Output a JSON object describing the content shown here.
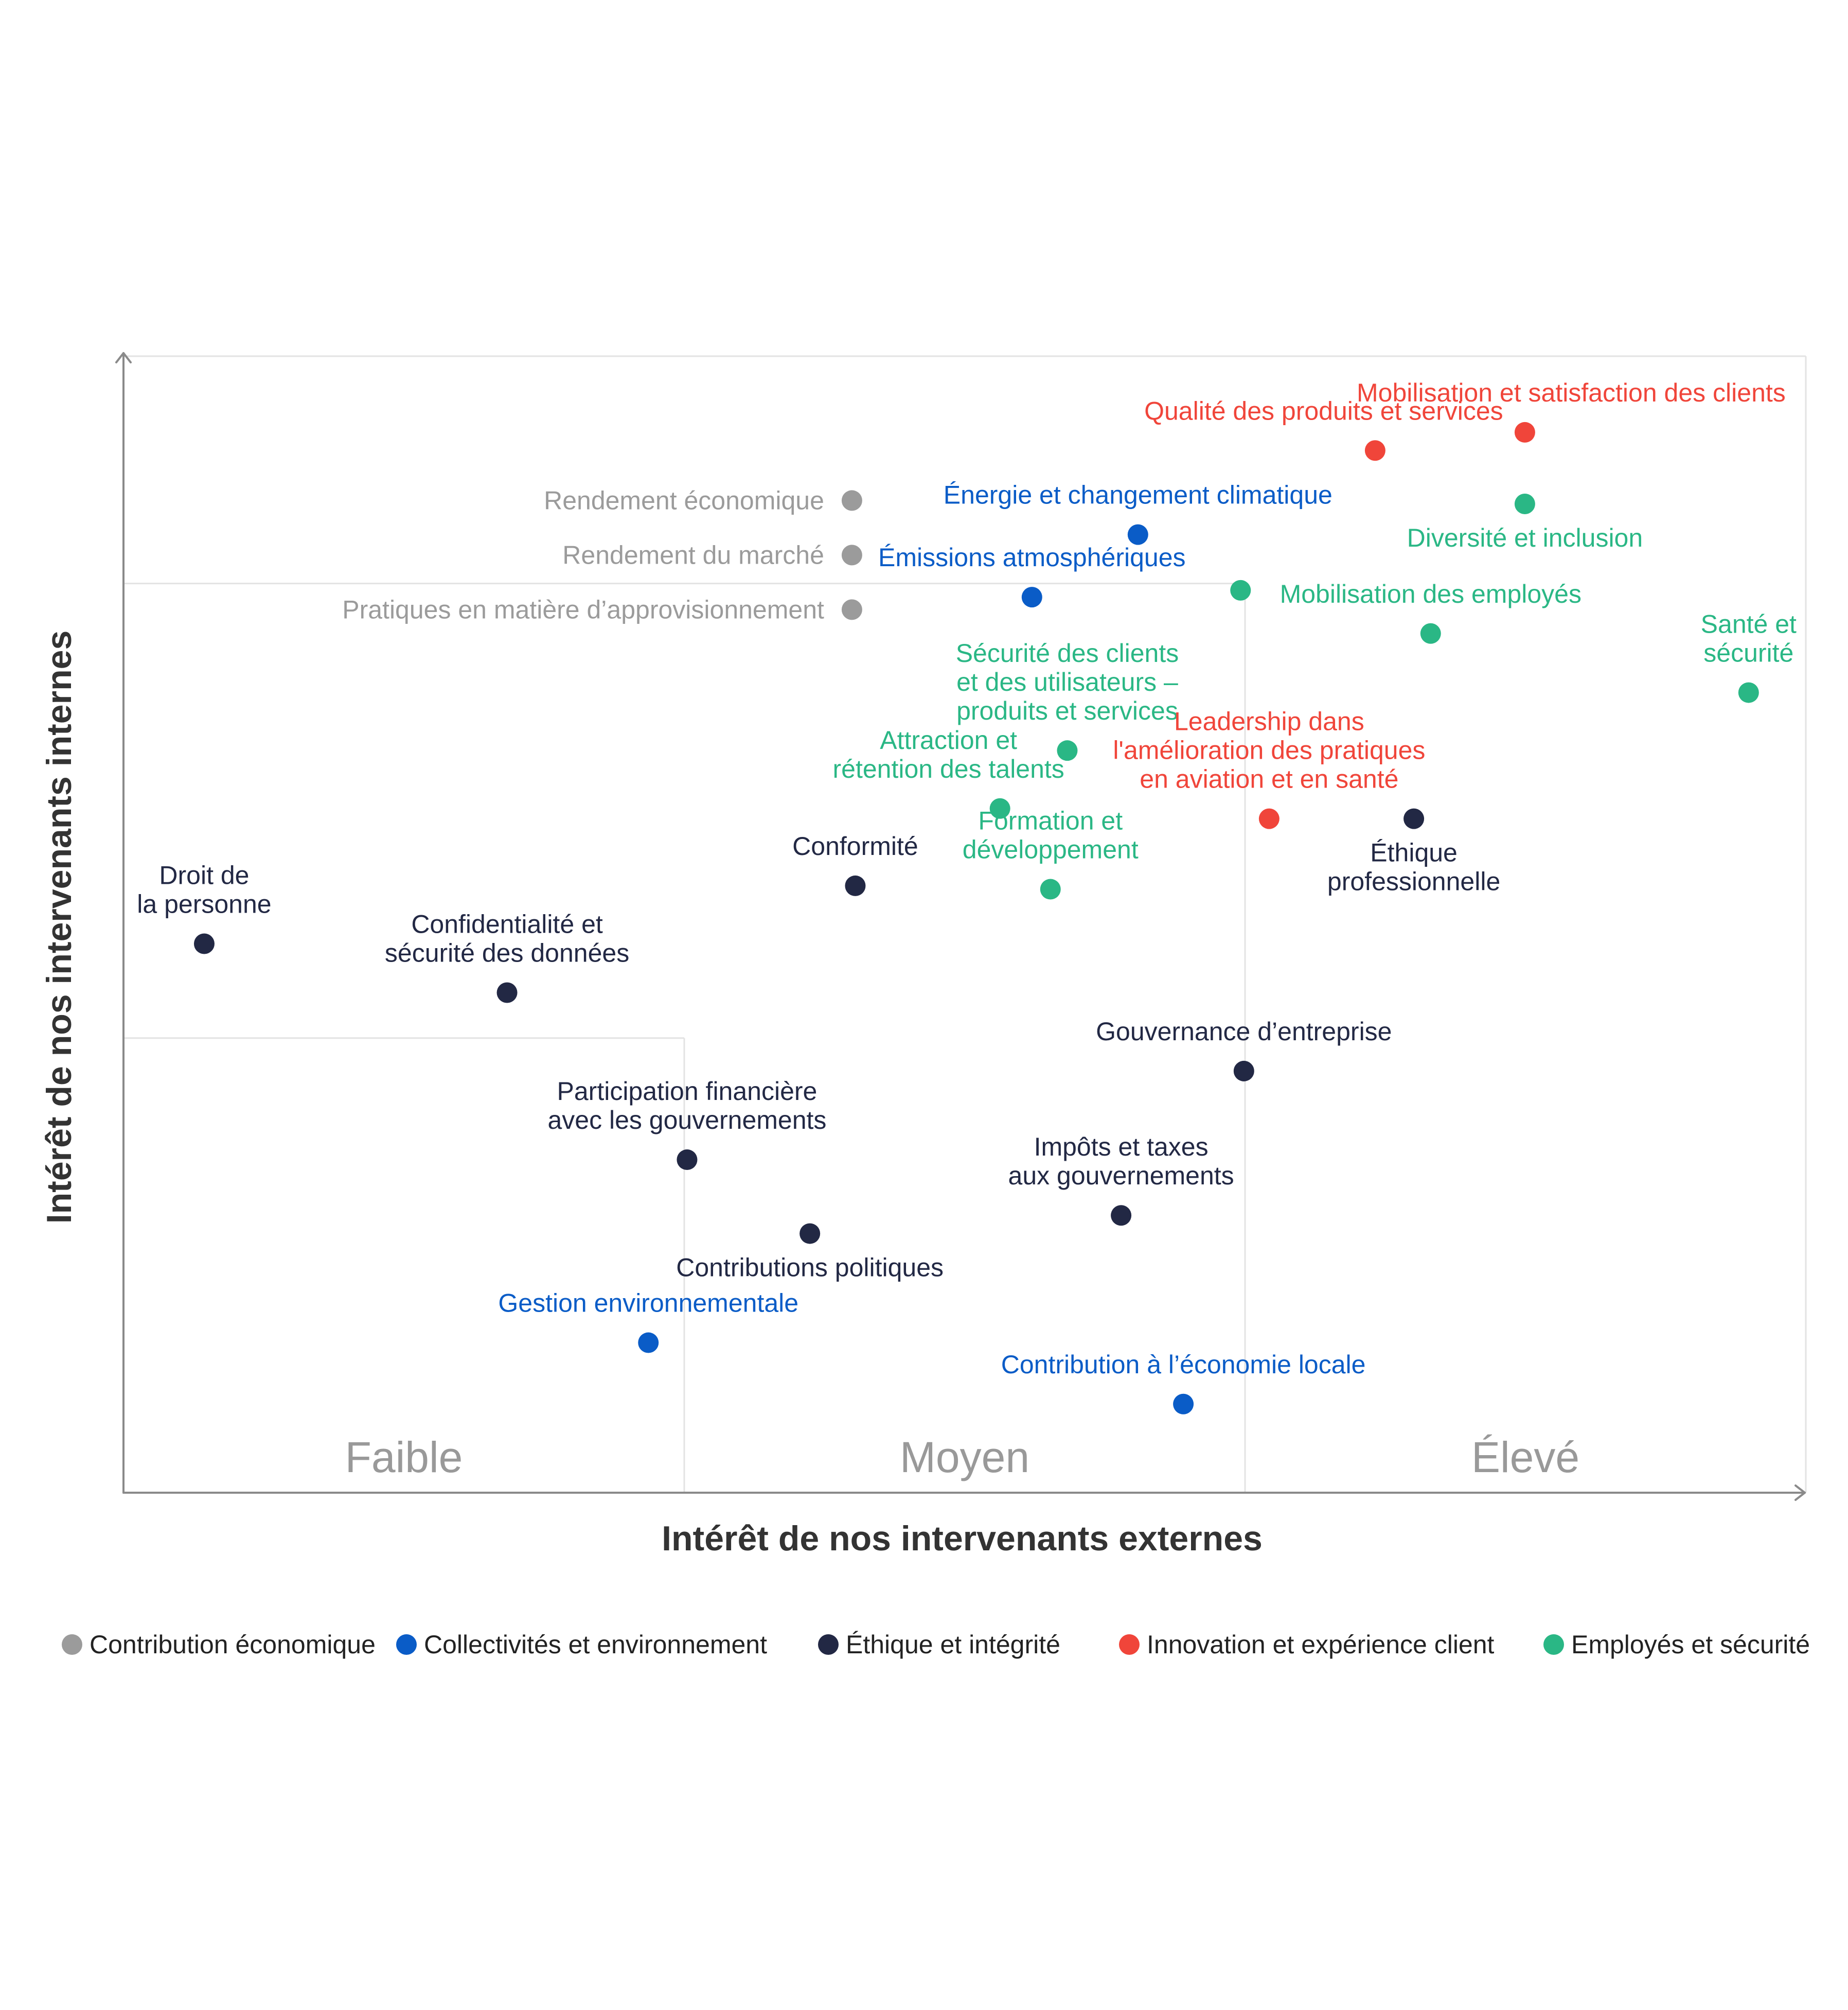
{
  "colors": {
    "gray": "#9b9b9b",
    "blue": "#0a5cc7",
    "navy": "#222844",
    "red": "#f0453a",
    "green": "#2ab785",
    "axis": "#8a8a8a",
    "grid": "#e3e3e3",
    "zone_text": "#999999",
    "axis_text": "#333333"
  },
  "chart_data": {
    "type": "scatter",
    "xlabel": "Intérêt de nos intervenants externes",
    "ylabel": "Intérêt de nos intervenants internes",
    "xlim": [
      0,
      100
    ],
    "ylim": [
      0,
      100
    ],
    "grid": false,
    "zones": [
      "Faible",
      "Moyen",
      "Élevé"
    ],
    "legend_position": "bottom",
    "legend": [
      {
        "name": "Contribution économique",
        "color": "#9b9b9b"
      },
      {
        "name": "Collectivités et environnement",
        "color": "#0a5cc7"
      },
      {
        "name": "Éthique et intégrité",
        "color": "#222844"
      },
      {
        "name": "Innovation et expérience client",
        "color": "#f0453a"
      },
      {
        "name": "Employés et sécurité",
        "color": "#2ab785"
      }
    ],
    "points": [
      {
        "label": [
          "Mobilisation et satisfaction des clients"
        ],
        "x": 83.3,
        "y": 93.3,
        "color": "#f0453a",
        "label_pos": "above-right"
      },
      {
        "label": [
          "Qualité des produits et services"
        ],
        "x": 74.4,
        "y": 91.7,
        "color": "#f0453a",
        "label_pos": "above-left"
      },
      {
        "label": [
          "Rendement économique"
        ],
        "x": 43.3,
        "y": 87.3,
        "color": "#9b9b9b",
        "label_pos": "left"
      },
      {
        "label": [
          "Diversité et inclusion"
        ],
        "x": 83.3,
        "y": 87.0,
        "color": "#2ab785",
        "label_pos": "below"
      },
      {
        "label": [
          "Énergie et changement climatique"
        ],
        "x": 60.3,
        "y": 84.3,
        "color": "#0a5cc7",
        "label_pos": "above"
      },
      {
        "label": [
          "Rendement du marché"
        ],
        "x": 43.3,
        "y": 82.5,
        "color": "#9b9b9b",
        "label_pos": "left"
      },
      {
        "label": [
          "Émissions atmosphériques"
        ],
        "x": 54.0,
        "y": 78.8,
        "color": "#0a5cc7",
        "label_pos": "above"
      },
      {
        "label": [],
        "x": 66.4,
        "y": 79.4,
        "color": "#2ab785",
        "label_pos": "none"
      },
      {
        "label": [
          "Pratiques en matière d’approvisionnement"
        ],
        "x": 43.3,
        "y": 77.7,
        "color": "#9b9b9b",
        "label_pos": "left"
      },
      {
        "label": [
          "Mobilisation des employés"
        ],
        "x": 77.7,
        "y": 75.6,
        "color": "#2ab785",
        "label_pos": "above"
      },
      {
        "label": [
          "Santé et",
          "sécurité"
        ],
        "x": 96.6,
        "y": 70.4,
        "color": "#2ab785",
        "label_pos": "above"
      },
      {
        "label": [
          "Sécurité des clients",
          "et des utilisateurs –",
          "produits et services"
        ],
        "x": 56.1,
        "y": 65.3,
        "color": "#2ab785",
        "label_pos": "above"
      },
      {
        "label": [
          "Attraction et",
          "rétention des talents"
        ],
        "x": 52.1,
        "y": 60.2,
        "color": "#2ab785",
        "label_pos": "above-left"
      },
      {
        "label": [
          "Leadership dans",
          "l'amélioration des pratiques",
          "en aviation et en santé"
        ],
        "x": 68.1,
        "y": 59.3,
        "color": "#f0453a",
        "label_pos": "above"
      },
      {
        "label": [
          "Éthique",
          "professionnelle"
        ],
        "x": 76.7,
        "y": 59.3,
        "color": "#222844",
        "label_pos": "below"
      },
      {
        "label": [
          "Conformité"
        ],
        "x": 43.5,
        "y": 53.4,
        "color": "#222844",
        "label_pos": "above"
      },
      {
        "label": [
          "Formation et",
          "développement"
        ],
        "x": 55.1,
        "y": 53.1,
        "color": "#2ab785",
        "label_pos": "above"
      },
      {
        "label": [
          "Droit de",
          "la personne"
        ],
        "x": 4.8,
        "y": 48.3,
        "color": "#222844",
        "label_pos": "above"
      },
      {
        "label": [
          "Confidentialité et",
          "sécurité des données"
        ],
        "x": 22.8,
        "y": 44.0,
        "color": "#222844",
        "label_pos": "above"
      },
      {
        "label": [
          "Gouvernance d’entreprise"
        ],
        "x": 66.6,
        "y": 37.1,
        "color": "#222844",
        "label_pos": "above"
      },
      {
        "label": [
          "Participation financière",
          "avec les gouvernements"
        ],
        "x": 33.5,
        "y": 29.3,
        "color": "#222844",
        "label_pos": "above"
      },
      {
        "label": [
          "Impôts et taxes",
          "aux gouvernements"
        ],
        "x": 59.3,
        "y": 24.4,
        "color": "#222844",
        "label_pos": "above"
      },
      {
        "label": [
          "Contributions politiques"
        ],
        "x": 40.8,
        "y": 22.8,
        "color": "#222844",
        "label_pos": "below"
      },
      {
        "label": [
          "Gestion environnementale"
        ],
        "x": 31.2,
        "y": 13.2,
        "color": "#0a5cc7",
        "label_pos": "above"
      },
      {
        "label": [
          "Contribution à l’économie locale"
        ],
        "x": 63.0,
        "y": 7.8,
        "color": "#0a5cc7",
        "label_pos": "above"
      }
    ]
  }
}
